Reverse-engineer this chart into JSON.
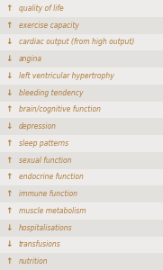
{
  "rows": [
    {
      "arrow": "↑",
      "text": "quality of life"
    },
    {
      "arrow": "↑",
      "text": "exercise capacity"
    },
    {
      "arrow": "↓",
      "text": "cardiac output (from high output)"
    },
    {
      "arrow": "↓",
      "text": "angina"
    },
    {
      "arrow": "↓",
      "text": "left ventricular hypertrophy"
    },
    {
      "arrow": "↓",
      "text": "bleeding tendency"
    },
    {
      "arrow": "↑",
      "text": "brain/cognitive function"
    },
    {
      "arrow": "↓",
      "text": "depression"
    },
    {
      "arrow": "↑",
      "text": "sleep patterns"
    },
    {
      "arrow": "↑",
      "text": "sexual function"
    },
    {
      "arrow": "↑",
      "text": "endocrine function"
    },
    {
      "arrow": "↑",
      "text": "immune function"
    },
    {
      "arrow": "↑",
      "text": "muscle metabolism"
    },
    {
      "arrow": "↓",
      "text": "hospitalisations"
    },
    {
      "arrow": "↓",
      "text": "transfusions"
    },
    {
      "arrow": "↑",
      "text": "nutrition"
    }
  ],
  "bg_color_light": "#edecea",
  "bg_color_dark": "#e3e1de",
  "text_color": "#b07a3a",
  "arrow_color": "#b07a3a",
  "font_size": 5.5,
  "arrow_font_size": 6.5,
  "fig_width": 1.81,
  "fig_height": 3.0,
  "dpi": 100
}
